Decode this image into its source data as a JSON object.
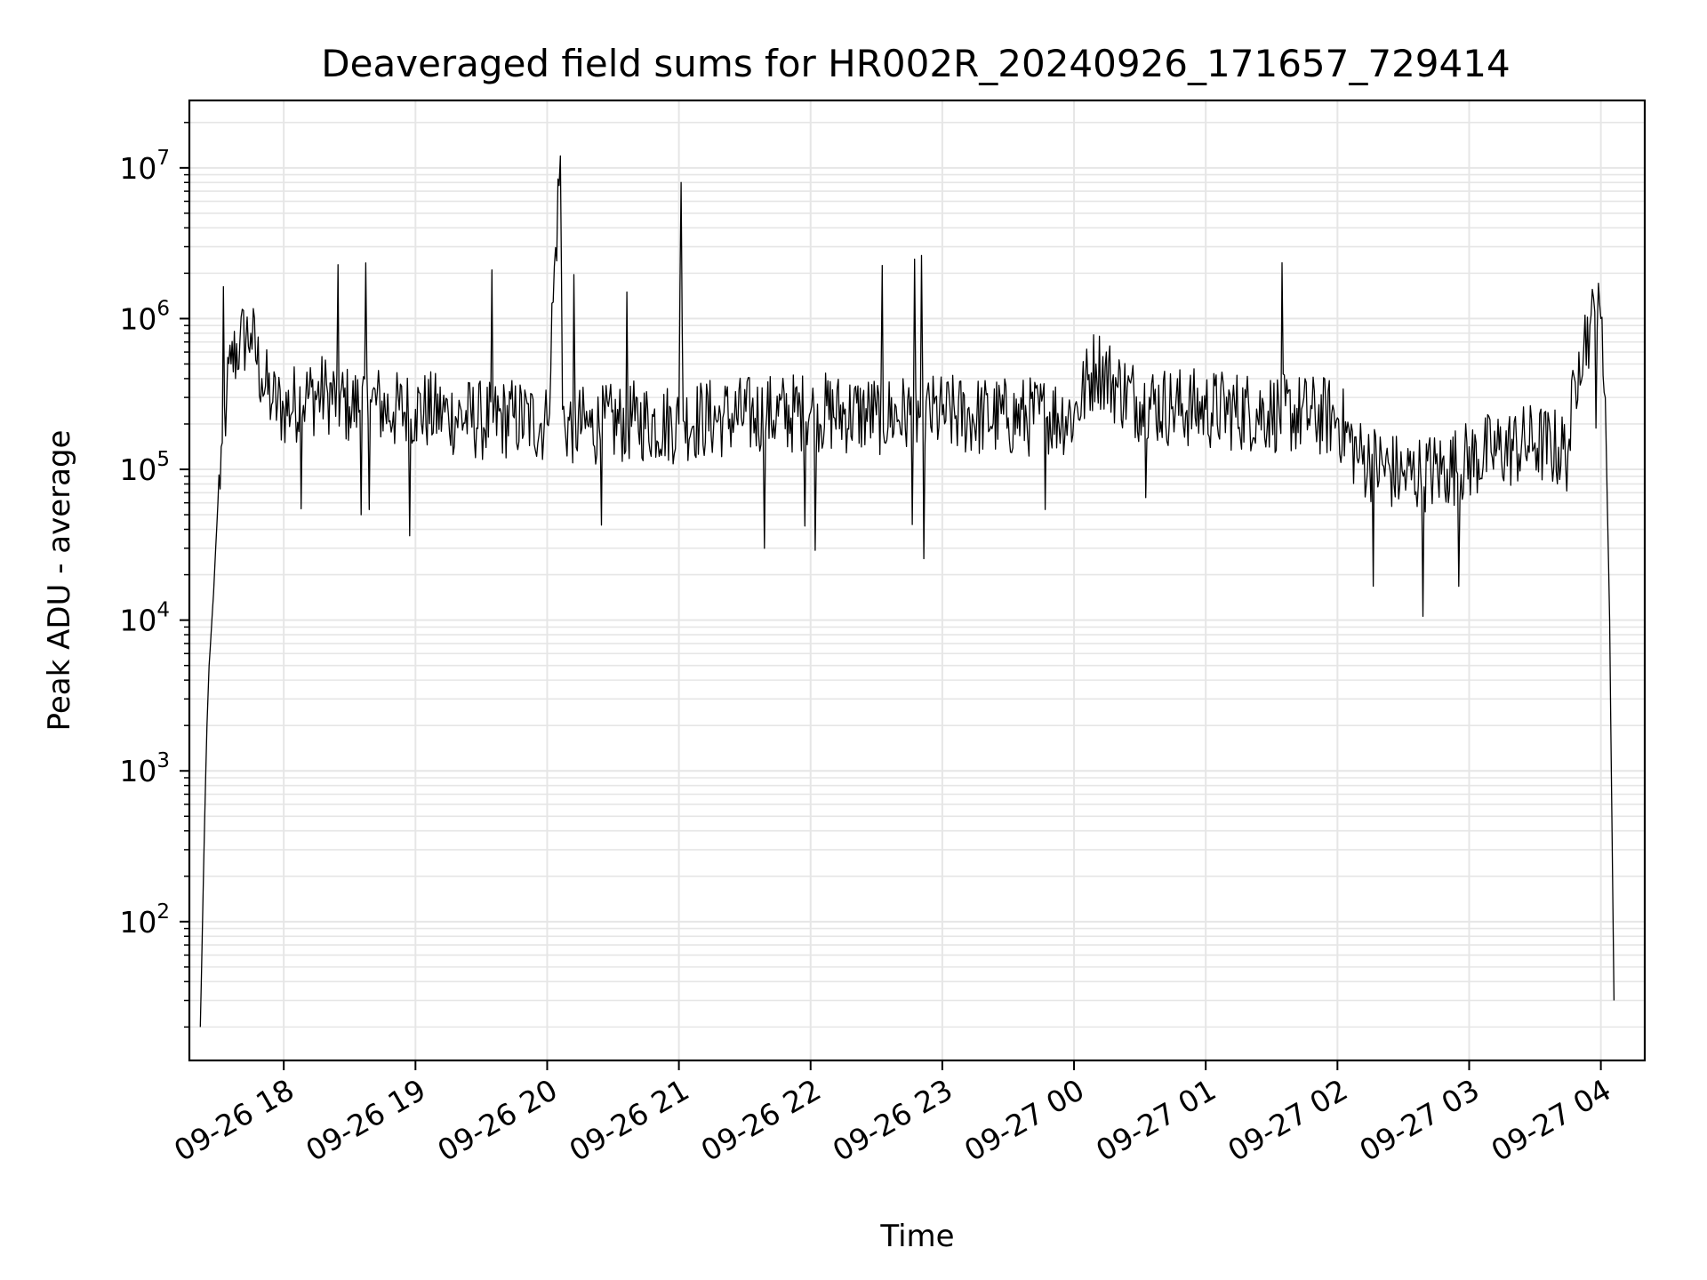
{
  "chart_data": {
    "type": "line",
    "title": "Deaveraged field sums for HR002R_20240926_171657_729414",
    "xlabel": "Time",
    "ylabel": "Peak ADU - average",
    "yscale": "log",
    "ylim": [
      12,
      28000000
    ],
    "xlim": [
      "2024-09-26 17:17",
      "2024-09-27 04:20"
    ],
    "grid": true,
    "grid_which": "both",
    "line_color": "#000000",
    "grid_color": "#e6e6e6",
    "x_ticks": [
      {
        "value": "2024-09-26 18:00",
        "label": "09-26 18"
      },
      {
        "value": "2024-09-26 19:00",
        "label": "09-26 19"
      },
      {
        "value": "2024-09-26 20:00",
        "label": "09-26 20"
      },
      {
        "value": "2024-09-26 21:00",
        "label": "09-26 21"
      },
      {
        "value": "2024-09-26 22:00",
        "label": "09-26 22"
      },
      {
        "value": "2024-09-26 23:00",
        "label": "09-26 23"
      },
      {
        "value": "2024-09-27 00:00",
        "label": "09-27 00"
      },
      {
        "value": "2024-09-27 01:00",
        "label": "09-27 01"
      },
      {
        "value": "2024-09-27 02:00",
        "label": "09-27 02"
      },
      {
        "value": "2024-09-27 03:00",
        "label": "09-27 03"
      },
      {
        "value": "2024-09-27 04:00",
        "label": "09-27 04"
      }
    ],
    "y_ticks": [
      {
        "value": 100,
        "base": "10",
        "exp": "2"
      },
      {
        "value": 1000,
        "base": "10",
        "exp": "3"
      },
      {
        "value": 10000,
        "base": "10",
        "exp": "4"
      },
      {
        "value": 100000,
        "base": "10",
        "exp": "5"
      },
      {
        "value": 1000000,
        "base": "10",
        "exp": "6"
      },
      {
        "value": 10000000,
        "base": "10",
        "exp": "7"
      }
    ],
    "series": [
      {
        "x": [
          "2024-09-26 17:22",
          "2024-09-26 17:23",
          "2024-09-26 17:24",
          "2024-09-26 17:25",
          "2024-09-26 17:26",
          "2024-09-26 17:28",
          "2024-09-26 17:30",
          "2024-09-26 17:32",
          "2024-09-26 17:34",
          "2024-09-26 17:36",
          "2024-09-26 17:40",
          "2024-09-26 17:45",
          "2024-09-26 17:50",
          "2024-09-26 17:55",
          "2024-09-26 18:00",
          "2024-09-26 18:10",
          "2024-09-26 18:20",
          "2024-09-26 18:30",
          "2024-09-26 18:40",
          "2024-09-26 18:50",
          "2024-09-26 19:00",
          "2024-09-26 19:15",
          "2024-09-26 19:30",
          "2024-09-26 19:45",
          "2024-09-26 20:00",
          "2024-09-26 20:06",
          "2024-09-26 20:07",
          "2024-09-26 20:08",
          "2024-09-26 20:20",
          "2024-09-26 20:40",
          "2024-09-26 21:00",
          "2024-09-26 21:01",
          "2024-09-26 21:02",
          "2024-09-26 21:20",
          "2024-09-26 21:40",
          "2024-09-26 22:00",
          "2024-09-26 22:30",
          "2024-09-26 23:00",
          "2024-09-26 23:30",
          "2024-09-27 00:00",
          "2024-09-27 00:10",
          "2024-09-27 00:20",
          "2024-09-27 00:30",
          "2024-09-27 00:45",
          "2024-09-27 01:00",
          "2024-09-27 01:30",
          "2024-09-27 02:00",
          "2024-09-27 02:10",
          "2024-09-27 02:30",
          "2024-09-27 02:50",
          "2024-09-27 03:10",
          "2024-09-27 03:30",
          "2024-09-27 03:45",
          "2024-09-27 03:50",
          "2024-09-27 03:55",
          "2024-09-27 04:00",
          "2024-09-27 04:02",
          "2024-09-27 04:04",
          "2024-09-27 04:05",
          "2024-09-27 04:06"
        ],
        "y": [
          20,
          100,
          500,
          2000,
          5000,
          15000,
          60000,
          150000,
          300000,
          500000,
          700000,
          800000,
          400000,
          280000,
          250000,
          300000,
          320000,
          260000,
          280000,
          240000,
          250000,
          230000,
          210000,
          220000,
          200000,
          12000000,
          250000,
          200000,
          190000,
          210000,
          200000,
          8000000,
          210000,
          220000,
          230000,
          240000,
          230000,
          230000,
          220000,
          230000,
          500000,
          350000,
          280000,
          260000,
          250000,
          240000,
          220000,
          120000,
          90000,
          100000,
          130000,
          150000,
          130000,
          600000,
          900000,
          1000000,
          300000,
          10000,
          500,
          30
        ]
      }
    ]
  }
}
